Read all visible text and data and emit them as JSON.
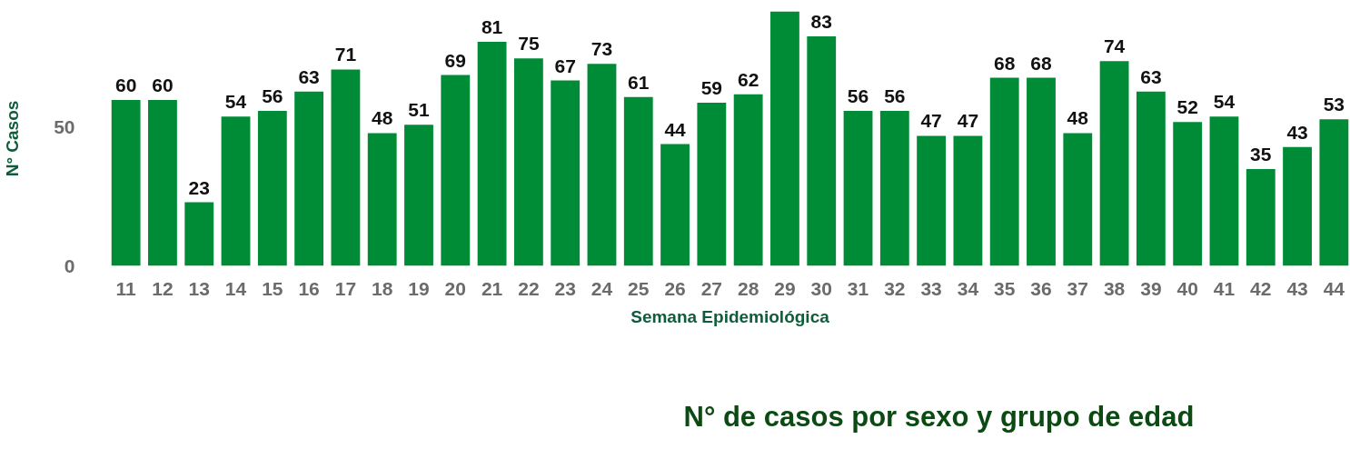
{
  "chart_data": [
    {
      "type": "bar",
      "xlabel": "Semana Epidemiológica",
      "ylabel": "N° Casos",
      "categories": [
        "11",
        "12",
        "13",
        "14",
        "15",
        "16",
        "17",
        "18",
        "19",
        "20",
        "21",
        "22",
        "23",
        "24",
        "25",
        "26",
        "27",
        "28",
        "29",
        "30",
        "31",
        "32",
        "33",
        "34",
        "35",
        "36",
        "37",
        "38",
        "39",
        "40",
        "41",
        "42",
        "43",
        "44"
      ],
      "values": [
        60,
        60,
        23,
        54,
        56,
        63,
        71,
        48,
        51,
        69,
        81,
        75,
        67,
        73,
        61,
        44,
        59,
        62,
        92,
        83,
        56,
        56,
        47,
        47,
        68,
        68,
        48,
        74,
        63,
        52,
        54,
        35,
        43,
        53
      ],
      "value_labels": [
        "60",
        "60",
        "23",
        "54",
        "56",
        "63",
        "71",
        "48",
        "51",
        "69",
        "81",
        "75",
        "67",
        "73",
        "61",
        "44",
        "59",
        "62",
        null,
        "83",
        "56",
        "56",
        "47",
        "47",
        "68",
        "68",
        "48",
        "74",
        "63",
        "52",
        "54",
        "35",
        "43",
        "53"
      ],
      "color": "#008b36",
      "ylim": [
        0,
        92
      ],
      "yticks": [
        0,
        50
      ]
    },
    {
      "type": "other",
      "title": "N° de casos por sexo y grupo de edad"
    }
  ]
}
